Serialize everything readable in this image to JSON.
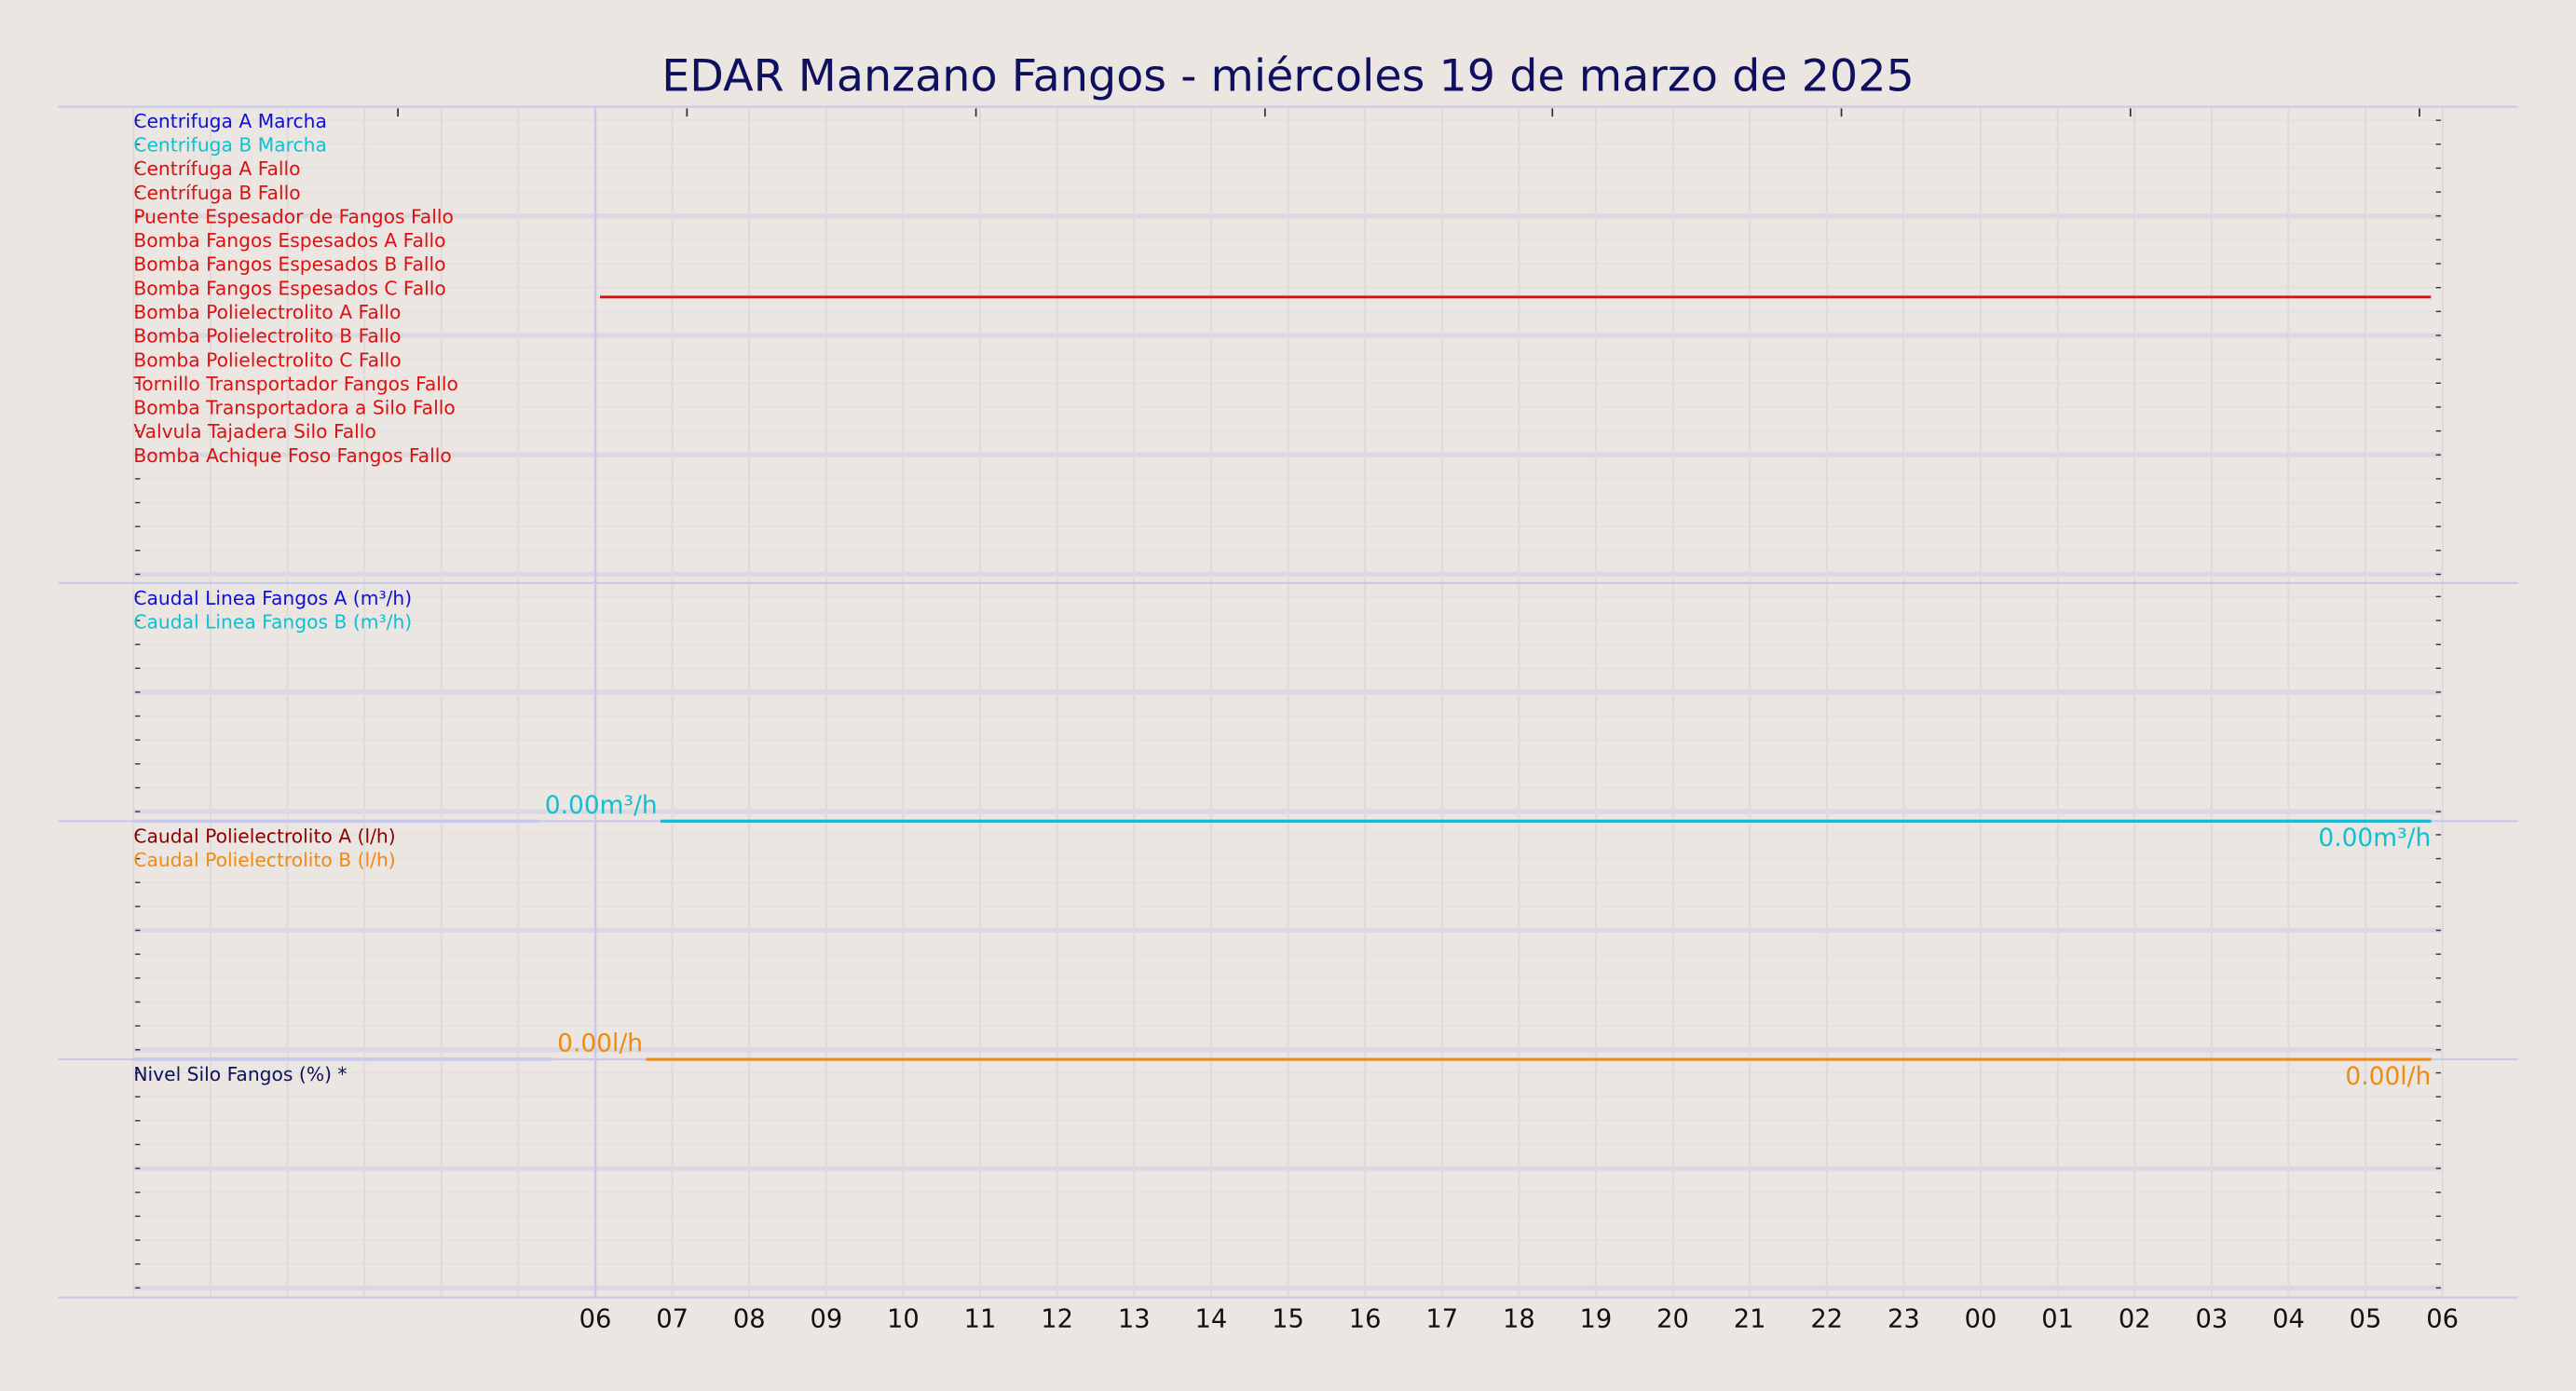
{
  "chart_data": [
    {
      "type": "digital",
      "title": "EDAR Manzano Fangos   -   miércoles 19 de marzo de 2025",
      "xlim": [
        0,
        30
      ],
      "x": [
        6.06,
        29.85
      ],
      "series": [
        {
          "name": "Centrifuga A Marcha",
          "color": "#1010d0",
          "values": [
            null,
            null
          ]
        },
        {
          "name": "Centrifuga B Marcha",
          "color": "#10c0d0",
          "values": [
            null,
            null
          ]
        },
        {
          "name": "Centrífuga A Fallo",
          "color": "#dd1010",
          "values": [
            null,
            null
          ]
        },
        {
          "name": "Centrífuga B Fallo",
          "color": "#dd1010",
          "values": [
            null,
            null
          ]
        },
        {
          "name": "Puente Espesador de Fangos Fallo",
          "color": "#dd1010",
          "values": [
            null,
            null
          ]
        },
        {
          "name": "Bomba Fangos Espesados A Fallo",
          "color": "#dd1010",
          "values": [
            null,
            null
          ]
        },
        {
          "name": "Bomba Fangos Espesados B Fallo",
          "color": "#dd1010",
          "values": [
            null,
            null
          ]
        },
        {
          "name": "Bomba Fangos Espesados C Fallo",
          "color": "#dd1010",
          "values": [
            1,
            1
          ]
        },
        {
          "name": "Bomba Polielectrolito A Fallo",
          "color": "#dd1010",
          "values": [
            null,
            null
          ]
        },
        {
          "name": "Bomba Polielectrolito B Fallo",
          "color": "#dd1010",
          "values": [
            null,
            null
          ]
        },
        {
          "name": "Bomba Polielectrolito C Fallo",
          "color": "#dd1010",
          "values": [
            null,
            null
          ]
        },
        {
          "name": "Tornillo Transportador Fangos Fallo",
          "color": "#dd1010",
          "values": [
            null,
            null
          ]
        },
        {
          "name": "Bomba Transportadora a Silo Fallo",
          "color": "#dd1010",
          "values": [
            null,
            null
          ]
        },
        {
          "name": "Valvula Tajadera Silo Fallo",
          "color": "#dd1010",
          "values": [
            null,
            null
          ]
        },
        {
          "name": "Bomba Achique Foso Fangos Fallo",
          "color": "#dd1010",
          "values": [
            null,
            null
          ]
        }
      ]
    },
    {
      "type": "line",
      "xlim": [
        0,
        30
      ],
      "ylim": [
        0,
        100
      ],
      "x": [
        6.85,
        29.85
      ],
      "series": [
        {
          "name": "Caudal Linea Fangos A (m³/h)",
          "color": "#1010d0",
          "values": [
            0,
            0
          ]
        },
        {
          "name": "Caudal Linea Fangos B (m³/h)",
          "color": "#10c0d0",
          "values": [
            0,
            0
          ],
          "value_labels": [
            "0.00m³/h",
            "0.00m³/h"
          ]
        }
      ]
    },
    {
      "type": "line",
      "xlim": [
        0,
        30
      ],
      "ylim": [
        0,
        100
      ],
      "x": [
        6.66,
        29.85
      ],
      "series": [
        {
          "name": "Caudal Polielectrolito A (l/h)",
          "color": "#8b0000",
          "values": [
            0,
            0
          ]
        },
        {
          "name": "Caudal Polielectrolito B (l/h)",
          "color": "#f08a10",
          "values": [
            0,
            0
          ],
          "value_labels": [
            "0.00l/h",
            "0.00l/h"
          ]
        }
      ]
    },
    {
      "type": "line",
      "xlim": [
        0,
        30
      ],
      "ylim": [
        0,
        100
      ],
      "x": [
        6.66,
        29.85
      ],
      "series": [
        {
          "name": "Nivel Silo Fangos (%) *",
          "color": "#101060",
          "values": [
            null,
            null
          ]
        }
      ],
      "xticks": [
        {
          "value": 6,
          "label": "06"
        },
        {
          "value": 7,
          "label": "07"
        },
        {
          "value": 8,
          "label": "08"
        },
        {
          "value": 9,
          "label": "09"
        },
        10,
        11,
        12,
        13,
        14,
        15,
        16,
        17,
        18,
        19,
        20,
        21,
        22,
        23,
        {
          "value": 24,
          "label": "00"
        },
        {
          "value": 25,
          "label": "01"
        },
        {
          "value": 26,
          "label": "02"
        },
        {
          "value": 27,
          "label": "03"
        },
        {
          "value": 28,
          "label": "04"
        },
        {
          "value": 29,
          "label": "05"
        },
        {
          "value": 30,
          "label": "06"
        }
      ]
    }
  ]
}
